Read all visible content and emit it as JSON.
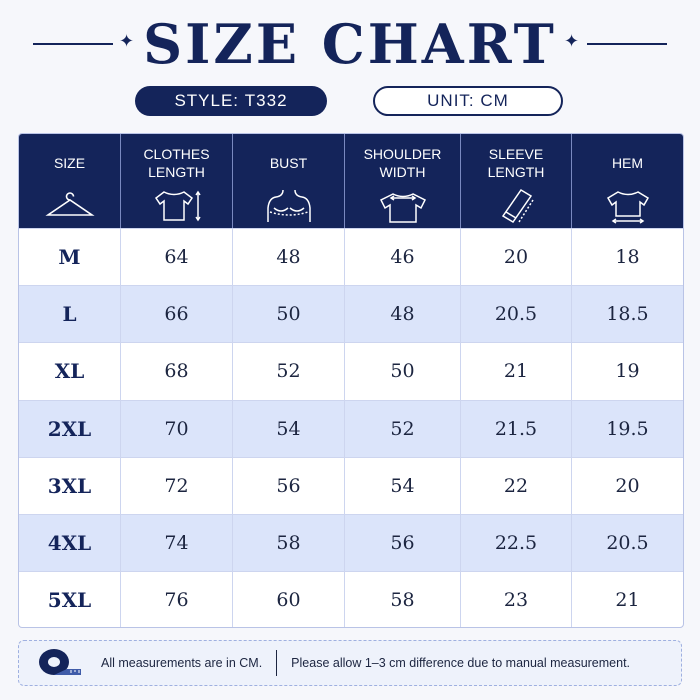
{
  "title": "SIZE CHART",
  "style_label": "STYLE:",
  "style_value": "T332",
  "unit_label": "UNIT:",
  "unit_value": "CM",
  "colors": {
    "navy": "#14245a",
    "row_alt": "#dbe4fa",
    "background": "#f6f7fb"
  },
  "headers": [
    {
      "label": "SIZE",
      "icon": "hanger-icon"
    },
    {
      "label": "CLOTHES LENGTH",
      "icon": "tshirt-length-icon"
    },
    {
      "label": "BUST",
      "icon": "bust-icon"
    },
    {
      "label": "SHOULDER WIDTH",
      "icon": "shoulder-width-icon"
    },
    {
      "label": "SLEEVE LENGTH",
      "icon": "sleeve-icon"
    },
    {
      "label": "HEM",
      "icon": "hem-icon"
    }
  ],
  "rows": [
    [
      "M",
      "64",
      "48",
      "46",
      "20",
      "18"
    ],
    [
      "L",
      "66",
      "50",
      "48",
      "20.5",
      "18.5"
    ],
    [
      "XL",
      "68",
      "52",
      "50",
      "21",
      "19"
    ],
    [
      "2XL",
      "70",
      "54",
      "52",
      "21.5",
      "19.5"
    ],
    [
      "3XL",
      "72",
      "56",
      "54",
      "22",
      "20"
    ],
    [
      "4XL",
      "74",
      "58",
      "56",
      "22.5",
      "20.5"
    ],
    [
      "5XL",
      "76",
      "60",
      "58",
      "23",
      "21"
    ]
  ],
  "note": {
    "icon": "measuring-tape-icon",
    "left": "All measurements are in CM.",
    "right": "Please allow 1–3 cm difference due to manual measurement."
  }
}
